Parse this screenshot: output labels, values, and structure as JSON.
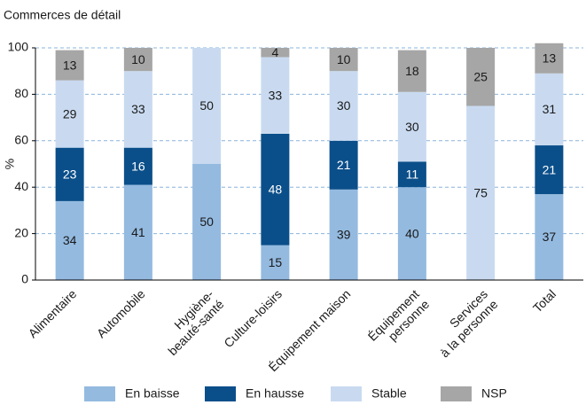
{
  "chart_data": {
    "type": "stacked_bar",
    "title": "Commerces de détail",
    "ylabel": "%",
    "categories": [
      "Alimentaire",
      "Automobile",
      "Hygiène-\nbeauté-santé",
      "Culture-loisirs",
      "Équipement maison",
      "Équipement\npersonne",
      "Services\nà la personne",
      "Total"
    ],
    "series": [
      {
        "name": "En baisse",
        "color": "#94bae0",
        "text_color": "#1a1a1a",
        "values": [
          34,
          41,
          50,
          15,
          39,
          40,
          null,
          37
        ]
      },
      {
        "name": "En hausse",
        "color": "#0b4f8a",
        "text_color": "#ffffff",
        "values": [
          23,
          16,
          null,
          48,
          21,
          11,
          null,
          21
        ]
      },
      {
        "name": "Stable",
        "color": "#c9daf0",
        "text_color": "#1a1a1a",
        "values": [
          29,
          33,
          50,
          33,
          30,
          30,
          75,
          31
        ]
      },
      {
        "name": "NSP",
        "color": "#a6a6a6",
        "text_color": "#1a1a1a",
        "values": [
          13,
          10,
          null,
          4,
          10,
          18,
          25,
          13
        ]
      }
    ],
    "ylim": [
      0,
      100
    ],
    "yticks": [
      0,
      20,
      40,
      60,
      80,
      100
    ],
    "grid": true,
    "legend": "bottom"
  }
}
